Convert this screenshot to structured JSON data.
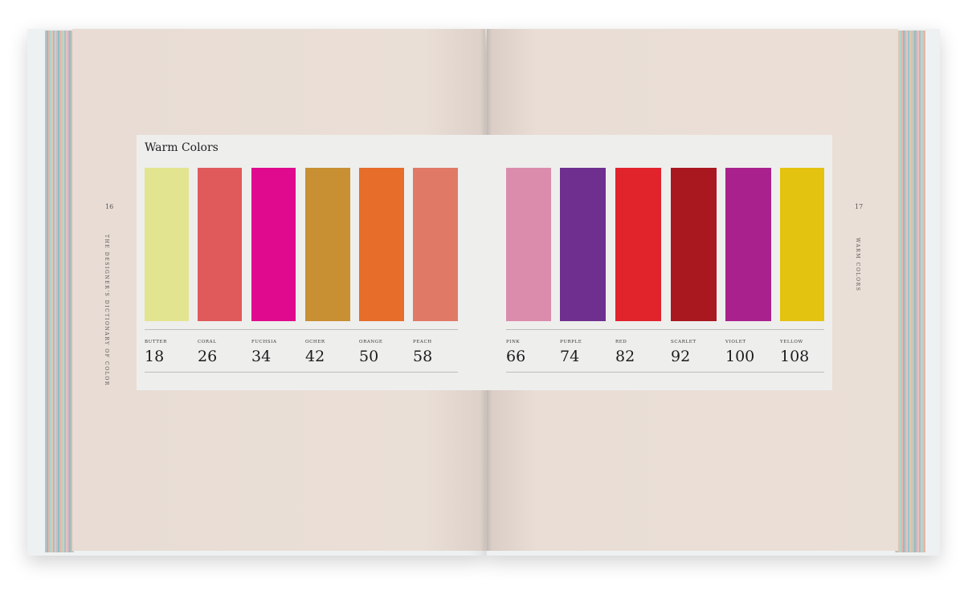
{
  "spread": {
    "left_page": {
      "folio": "16",
      "running_head": "THE DESIGNER'S DICTIONARY OF COLOR"
    },
    "right_page": {
      "folio": "17",
      "running_head": "WARM COLORS"
    },
    "section_title": "Warm Colors",
    "colors": [
      {
        "name": "BUTTER",
        "page": "18",
        "hex": "#e3e48f"
      },
      {
        "name": "CORAL",
        "page": "26",
        "hex": "#e05a5c"
      },
      {
        "name": "FUCHSIA",
        "page": "34",
        "hex": "#df0a8d"
      },
      {
        "name": "OCHER",
        "page": "42",
        "hex": "#c88f33"
      },
      {
        "name": "ORANGE",
        "page": "50",
        "hex": "#e66d2a"
      },
      {
        "name": "PEACH",
        "page": "58",
        "hex": "#e07a67"
      },
      {
        "name": "PINK",
        "page": "66",
        "hex": "#db8cad"
      },
      {
        "name": "PURPLE",
        "page": "74",
        "hex": "#6f2f8f"
      },
      {
        "name": "RED",
        "page": "82",
        "hex": "#e1232c"
      },
      {
        "name": "SCARLET",
        "page": "92",
        "hex": "#a9171f"
      },
      {
        "name": "VIOLET",
        "page": "100",
        "hex": "#a9218d"
      },
      {
        "name": "YELLOW",
        "page": "108",
        "hex": "#e4c210"
      }
    ]
  }
}
